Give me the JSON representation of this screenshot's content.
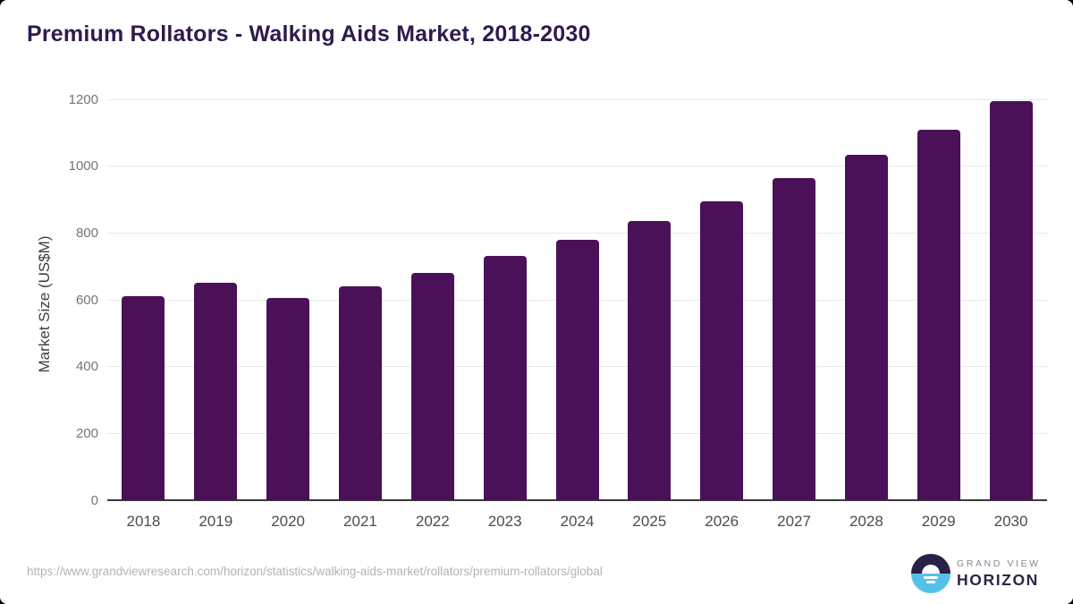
{
  "page": {
    "title": "Premium Rollators - Walking Aids Market, 2018-2030"
  },
  "chart_data": {
    "type": "bar",
    "title": "Premium Rollators - Walking Aids Market, 2018-2030",
    "xlabel": "",
    "ylabel": "Market Size (US$M)",
    "categories": [
      "2018",
      "2019",
      "2020",
      "2021",
      "2022",
      "2023",
      "2024",
      "2025",
      "2026",
      "2027",
      "2028",
      "2029",
      "2030"
    ],
    "values": [
      610,
      650,
      605,
      640,
      680,
      730,
      780,
      835,
      895,
      965,
      1035,
      1110,
      1195
    ],
    "ylim": [
      0,
      1200
    ],
    "yticks": [
      0,
      200,
      400,
      600,
      800,
      1000,
      1200
    ],
    "grid": true,
    "legend": "none",
    "bar_color": "#4a1158"
  },
  "colors": {
    "title_text": "#2e1a4e",
    "bar": "#4a1158",
    "gridline": "#e9e9e9",
    "axis_line": "#3a3a3a",
    "logo_dark": "#2b2045",
    "logo_blue": "#56c1e8"
  },
  "footer": {
    "source_url": "https://www.grandviewresearch.com/horizon/statistics/walking-aids-market/rollators/premium-rollators/global",
    "logo": {
      "icon": "horizon-sun-icon",
      "line1": "GRAND VIEW",
      "line2": "HORIZON"
    }
  }
}
